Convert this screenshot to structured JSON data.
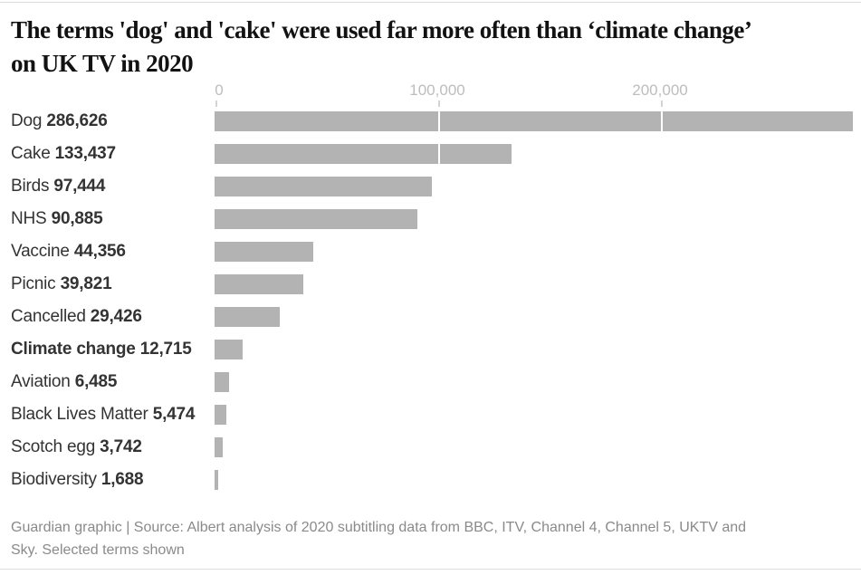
{
  "title": {
    "line1": "The terms 'dog' and 'cake' were used far more often than ‘climate change’",
    "line2": "on UK TV in 2020"
  },
  "chart_data": {
    "type": "bar",
    "orientation": "horizontal",
    "title": "The terms 'dog' and 'cake' were used far more often than ‘climate change’ on UK TV in 2020",
    "categories": [
      "Dog",
      "Cake",
      "Birds",
      "NHS",
      "Vaccine",
      "Picnic",
      "Cancelled",
      "Climate change",
      "Aviation",
      "Black Lives Matter",
      "Scotch egg",
      "Biodiversity"
    ],
    "values": [
      286626,
      133437,
      97444,
      90885,
      44356,
      39821,
      29426,
      12715,
      6485,
      5474,
      3742,
      1688
    ],
    "value_labels": [
      "286,626",
      "133,437",
      "97,444",
      "90,885",
      "44,356",
      "39,821",
      "29,426",
      "12,715",
      "6,485",
      "5,474",
      "3,742",
      "1,688"
    ],
    "emphasized_category": "Climate change",
    "axis": {
      "ticks": [
        0,
        100000,
        200000
      ],
      "tick_labels": [
        "0",
        "100,000",
        "200,000"
      ],
      "max": 290000,
      "gridlines": true
    },
    "bar_color": "#b3b3b3",
    "legend": "none"
  },
  "footer": {
    "line1": "Guardian graphic | Source: Albert analysis of 2020 subtitling data from BBC, ITV, Channel 4, Channel 5, UKTV and",
    "line2": "Sky. Selected terms shown"
  },
  "colors": {
    "title_text": "#121212",
    "label_text": "#333333",
    "bar": "#b3b3b3",
    "axis_label": "#bdbdbd",
    "tick": "#d4d4d4",
    "rule": "#dcdcdc",
    "footer_text": "#8a8a8a",
    "gridline": "#ffffff",
    "background": "#ffffff"
  }
}
